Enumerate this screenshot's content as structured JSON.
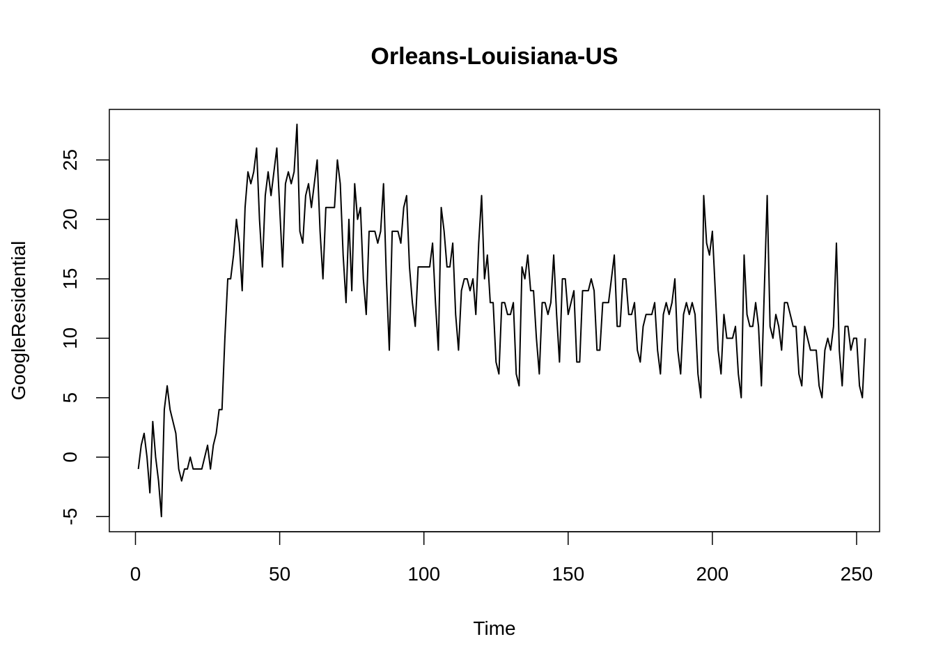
{
  "chart_data": {
    "type": "line",
    "title": "Orleans-Louisiana-US",
    "xlabel": "Time",
    "ylabel": "GoogleResidential",
    "xlim": [
      1,
      248
    ],
    "ylim": [
      -5,
      28
    ],
    "x_ticks": [
      0,
      50,
      100,
      150,
      200,
      250
    ],
    "y_ticks": [
      -5,
      0,
      5,
      10,
      15,
      20,
      25
    ],
    "x_tick_labels": [
      "0",
      "50",
      "100",
      "150",
      "200",
      "250"
    ],
    "y_tick_labels": [
      "-5",
      "0",
      "5",
      "10",
      "15",
      "20",
      "25"
    ],
    "grid": false,
    "legend": "none",
    "line_color": "#000000",
    "series": [
      {
        "x_start": 1,
        "values": [
          -1,
          1,
          2,
          0,
          -3,
          3,
          0,
          -2,
          -5,
          4,
          6,
          4,
          3,
          2,
          -1,
          -2,
          -1,
          -1,
          0,
          -1,
          -1,
          -1,
          -1,
          0,
          1,
          -1,
          1,
          2,
          4,
          4,
          10,
          15,
          15,
          17,
          20,
          18,
          14,
          21,
          24,
          23,
          24,
          26,
          20,
          16,
          22,
          24,
          22,
          24,
          26,
          21,
          16,
          23,
          24,
          23,
          24,
          28,
          19,
          18,
          22,
          23,
          21,
          23,
          25,
          19,
          15,
          21,
          21,
          21,
          21,
          25,
          23,
          17,
          13,
          20,
          14,
          23,
          20,
          21,
          15,
          12,
          19,
          19,
          19,
          18,
          19,
          23,
          15,
          9,
          19,
          19,
          19,
          18,
          21,
          22,
          16,
          13,
          11,
          16,
          16,
          16,
          16,
          16,
          18,
          13,
          9,
          21,
          19,
          16,
          16,
          18,
          12,
          9,
          14,
          15,
          15,
          14,
          15,
          12,
          18,
          22,
          15,
          17,
          13,
          13,
          8,
          7,
          13,
          13,
          12,
          12,
          13,
          7,
          6,
          16,
          15,
          17,
          14,
          14,
          10,
          7,
          13,
          13,
          12,
          13,
          17,
          12,
          8,
          15,
          15,
          12,
          13,
          14,
          8,
          8,
          14,
          14,
          14,
          15,
          14,
          9,
          9,
          13,
          13,
          13,
          15,
          17,
          11,
          11,
          15,
          15,
          12,
          12,
          13,
          9,
          8,
          11,
          12,
          12,
          12,
          13,
          9,
          7,
          12,
          13,
          12,
          13,
          15,
          9,
          7,
          12,
          13,
          12,
          13,
          12,
          7,
          5,
          22,
          18,
          17,
          19,
          14,
          9,
          7,
          12,
          10,
          10,
          10,
          11,
          7,
          5,
          17,
          12,
          11,
          11,
          13,
          11,
          6,
          14,
          22,
          11,
          10,
          12,
          11,
          9,
          13,
          13,
          12,
          11,
          11,
          7,
          6,
          11,
          10,
          9,
          9,
          9,
          6,
          5,
          9,
          10,
          9,
          11,
          18,
          9,
          6,
          11,
          11,
          9,
          10,
          10,
          6,
          5,
          10
        ]
      }
    ]
  }
}
